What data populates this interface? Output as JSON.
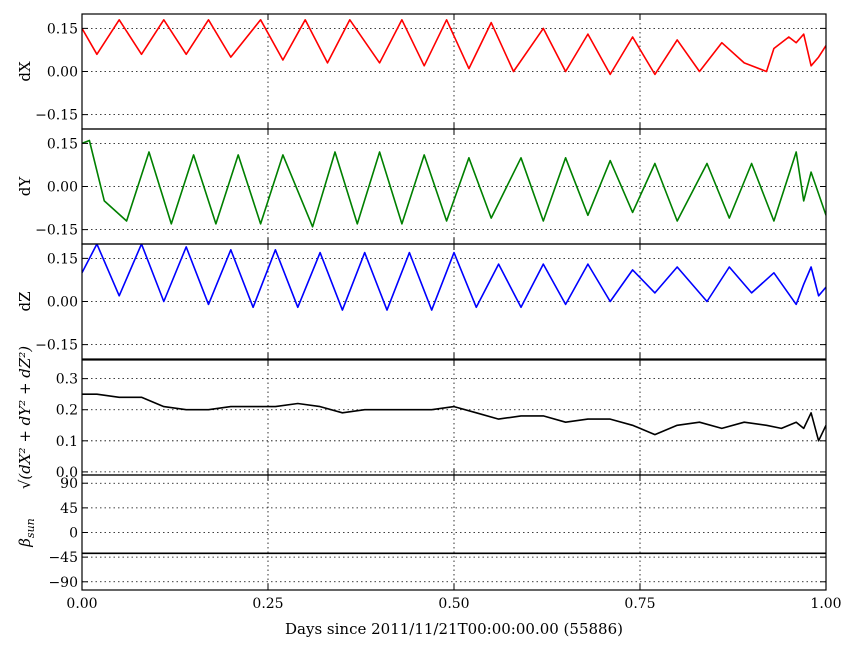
{
  "chart_data": {
    "type": "line",
    "xlabel": "Days since 2011/11/21T00:00:00.00 (55886)",
    "xlim": [
      0.0,
      1.0
    ],
    "xticks": [
      0.0,
      0.25,
      0.5,
      0.75,
      1.0
    ],
    "xtick_labels": [
      "0.00",
      "0.25",
      "0.50",
      "0.75",
      "1.00"
    ],
    "grid": true,
    "panels": [
      {
        "id": "dx",
        "ylabel": "dX",
        "ylim": [
          -0.2,
          0.2
        ],
        "yticks": [
          -0.15,
          0.0,
          0.15
        ],
        "ytick_labels": [
          "−0.15",
          "0.00",
          "0.15"
        ],
        "color": "#ff0000",
        "x": [
          0.0,
          0.02,
          0.05,
          0.08,
          0.11,
          0.14,
          0.17,
          0.2,
          0.24,
          0.27,
          0.3,
          0.33,
          0.36,
          0.4,
          0.43,
          0.46,
          0.49,
          0.52,
          0.55,
          0.58,
          0.62,
          0.65,
          0.68,
          0.71,
          0.74,
          0.77,
          0.8,
          0.83,
          0.86,
          0.89,
          0.92,
          0.93,
          0.95,
          0.96,
          0.97,
          0.98,
          0.99,
          1.0
        ],
        "y": [
          0.15,
          0.06,
          0.18,
          0.06,
          0.18,
          0.06,
          0.18,
          0.05,
          0.18,
          0.04,
          0.18,
          0.03,
          0.18,
          0.03,
          0.18,
          0.02,
          0.18,
          0.01,
          0.17,
          0.0,
          0.15,
          0.0,
          0.13,
          -0.01,
          0.12,
          -0.01,
          0.11,
          0.0,
          0.1,
          0.03,
          0.0,
          0.08,
          0.12,
          0.1,
          0.13,
          0.02,
          0.05,
          0.09
        ]
      },
      {
        "id": "dy",
        "ylabel": "dY",
        "ylim": [
          -0.2,
          0.2
        ],
        "yticks": [
          -0.15,
          0.0,
          0.15
        ],
        "ytick_labels": [
          "−0.15",
          "0.00",
          "0.15"
        ],
        "color": "#008000",
        "x": [
          0.0,
          0.01,
          0.03,
          0.06,
          0.09,
          0.12,
          0.15,
          0.18,
          0.21,
          0.24,
          0.27,
          0.31,
          0.34,
          0.37,
          0.4,
          0.43,
          0.46,
          0.49,
          0.52,
          0.55,
          0.59,
          0.62,
          0.65,
          0.68,
          0.71,
          0.74,
          0.77,
          0.8,
          0.84,
          0.87,
          0.9,
          0.93,
          0.96,
          0.97,
          0.98,
          1.0
        ],
        "y": [
          0.15,
          0.16,
          -0.05,
          -0.12,
          0.12,
          -0.13,
          0.11,
          -0.13,
          0.11,
          -0.13,
          0.11,
          -0.14,
          0.12,
          -0.13,
          0.12,
          -0.13,
          0.11,
          -0.12,
          0.1,
          -0.11,
          0.1,
          -0.12,
          0.1,
          -0.1,
          0.09,
          -0.09,
          0.08,
          -0.12,
          0.08,
          -0.11,
          0.08,
          -0.12,
          0.12,
          -0.05,
          0.05,
          -0.1
        ]
      },
      {
        "id": "dz",
        "ylabel": "dZ",
        "ylim": [
          -0.2,
          0.2
        ],
        "yticks": [
          -0.15,
          0.0,
          0.15
        ],
        "ytick_labels": [
          "−0.15",
          "0.00",
          "0.15"
        ],
        "color": "#0000ff",
        "x": [
          0.0,
          0.02,
          0.05,
          0.08,
          0.11,
          0.14,
          0.17,
          0.2,
          0.23,
          0.26,
          0.29,
          0.32,
          0.35,
          0.38,
          0.41,
          0.44,
          0.47,
          0.5,
          0.53,
          0.56,
          0.59,
          0.62,
          0.65,
          0.68,
          0.71,
          0.74,
          0.77,
          0.8,
          0.84,
          0.87,
          0.9,
          0.93,
          0.96,
          0.97,
          0.98,
          0.99,
          1.0
        ],
        "y": [
          0.1,
          0.2,
          0.02,
          0.2,
          0.0,
          0.19,
          -0.01,
          0.18,
          -0.02,
          0.18,
          -0.02,
          0.17,
          -0.03,
          0.17,
          -0.03,
          0.17,
          -0.03,
          0.17,
          -0.02,
          0.13,
          -0.02,
          0.13,
          -0.01,
          0.13,
          0.0,
          0.11,
          0.03,
          0.12,
          0.0,
          0.12,
          0.03,
          0.1,
          -0.01,
          0.06,
          0.12,
          0.02,
          0.05
        ]
      },
      {
        "id": "mag",
        "ylabel": "√(dX² + dY² + dZ²)",
        "ylim": [
          -0.01,
          0.36
        ],
        "yticks": [
          0.0,
          0.1,
          0.2,
          0.3
        ],
        "ytick_labels": [
          "0.0",
          "0.1",
          "0.2",
          "0.3"
        ],
        "color": "#000000",
        "x": [
          0.0,
          0.02,
          0.05,
          0.08,
          0.11,
          0.14,
          0.17,
          0.2,
          0.23,
          0.26,
          0.29,
          0.32,
          0.35,
          0.38,
          0.41,
          0.44,
          0.47,
          0.5,
          0.53,
          0.56,
          0.59,
          0.62,
          0.65,
          0.68,
          0.71,
          0.74,
          0.77,
          0.8,
          0.83,
          0.86,
          0.89,
          0.92,
          0.94,
          0.96,
          0.97,
          0.98,
          0.99,
          1.0
        ],
        "y": [
          0.25,
          0.25,
          0.24,
          0.24,
          0.21,
          0.2,
          0.2,
          0.21,
          0.21,
          0.21,
          0.22,
          0.21,
          0.19,
          0.2,
          0.2,
          0.2,
          0.2,
          0.21,
          0.19,
          0.17,
          0.18,
          0.18,
          0.16,
          0.17,
          0.17,
          0.15,
          0.12,
          0.15,
          0.16,
          0.14,
          0.16,
          0.15,
          0.14,
          0.16,
          0.14,
          0.19,
          0.1,
          0.15
        ]
      },
      {
        "id": "beta",
        "ylabel": "β_sun",
        "ylim": [
          -105,
          105
        ],
        "yticks": [
          -90,
          -45,
          0,
          45,
          90
        ],
        "ytick_labels": [
          "−90",
          "−45",
          "0",
          "45",
          "90"
        ],
        "color": "#000000",
        "x": [
          0.0,
          0.05,
          0.1,
          0.15,
          0.2,
          0.25,
          0.3,
          0.35,
          0.4,
          0.45,
          0.5,
          0.55,
          0.6,
          0.65,
          0.7,
          0.75,
          0.8,
          0.85,
          0.9,
          0.95,
          1.0
        ],
        "y": [
          -38,
          -38,
          -38,
          -38,
          -38,
          -38,
          -38,
          -38,
          -38,
          -38,
          -38,
          -38,
          -38,
          -38,
          -38,
          -38,
          -38,
          -38,
          -38,
          -38,
          -38
        ]
      }
    ]
  }
}
